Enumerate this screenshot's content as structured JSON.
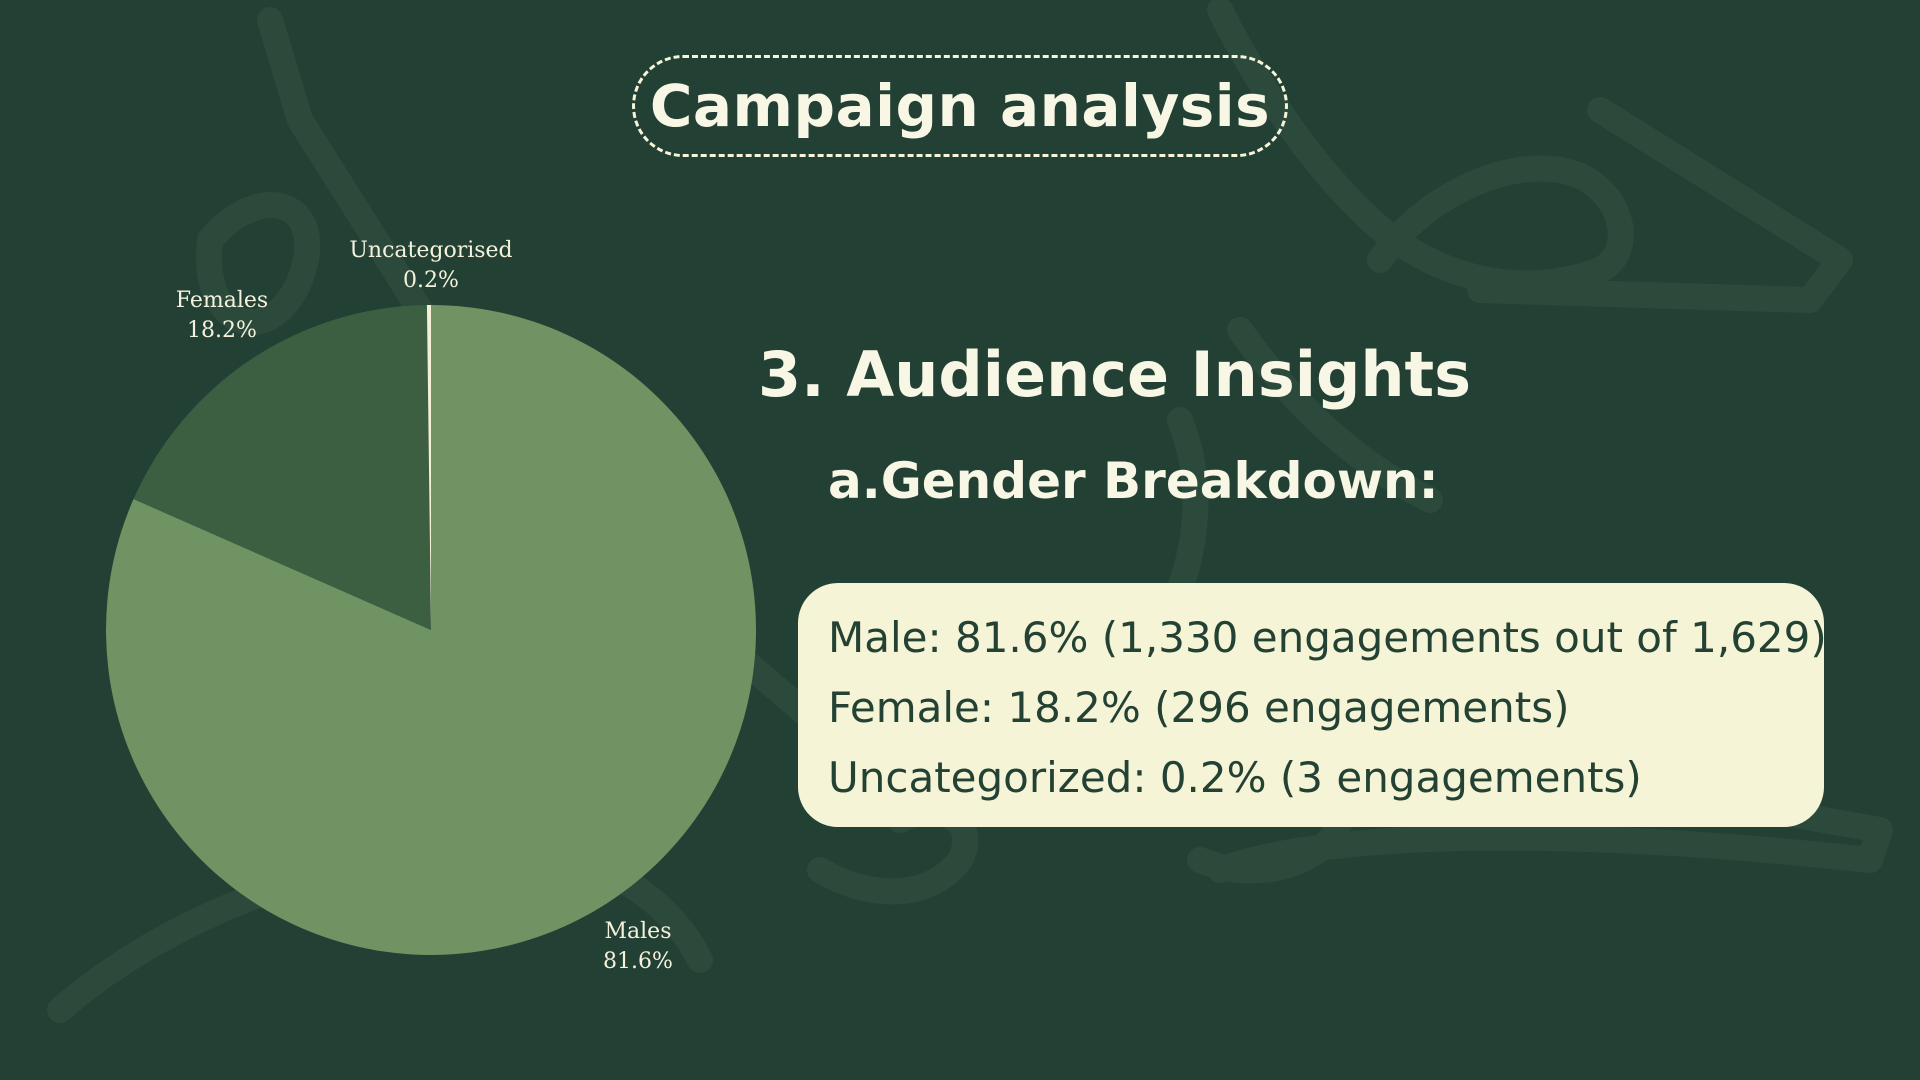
{
  "slide": {
    "title": "Campaign analysis",
    "heading": "3. Audience Insights",
    "subheading": "a.Gender Breakdown:",
    "stats": [
      "Male: 81.6% (1,330 engagements out of 1,629)",
      "Female: 18.2% (296 engagements)",
      "Uncategorized: 0.2% (3 engagements)"
    ]
  },
  "colors": {
    "background": "#234034",
    "text_light": "#f8f6e4",
    "box_fill": "#f6f4d7",
    "box_text": "#244234"
  },
  "chart_data": {
    "type": "pie",
    "start": "top",
    "direction": "clockwise",
    "slices": [
      {
        "label": "Males",
        "pct_text": "81.6%",
        "value": 81.6,
        "color": "#6f9362",
        "label_align": "bottom-right"
      },
      {
        "label": "Females",
        "pct_text": "18.2%",
        "value": 18.2,
        "color": "#3b5f40",
        "label_align": "top-left"
      },
      {
        "label": "Uncategorised",
        "pct_text": "0.2%",
        "value": 0.2,
        "color": "#f3f0d6",
        "label_align": "top"
      }
    ]
  }
}
